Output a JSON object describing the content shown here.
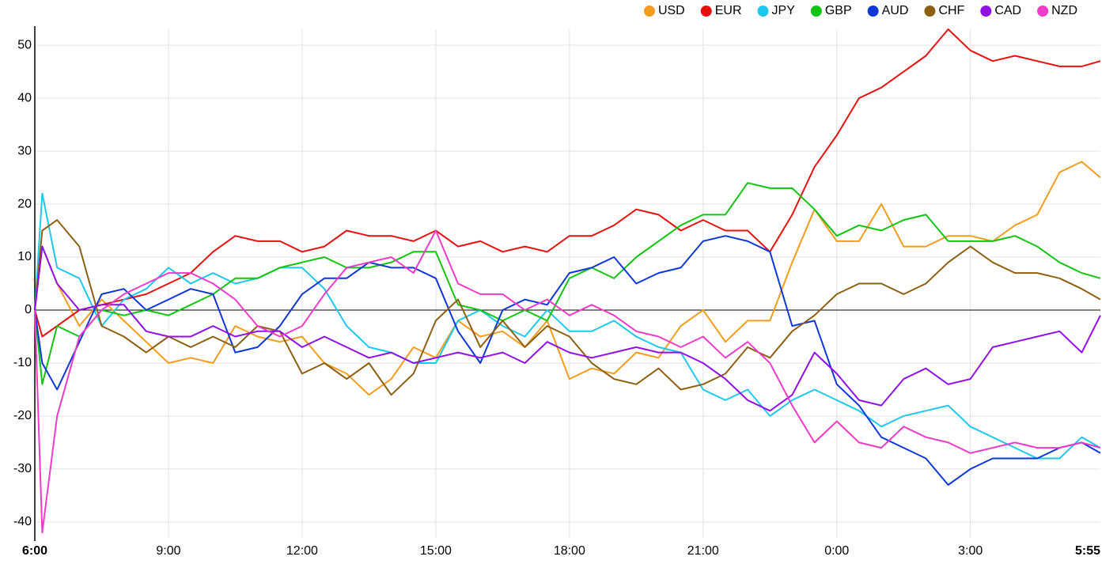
{
  "chart_data": {
    "type": "line",
    "x": [
      0,
      10,
      30,
      60,
      90,
      120,
      150,
      180,
      210,
      240,
      270,
      300,
      330,
      360,
      390,
      420,
      450,
      480,
      510,
      540,
      570,
      600,
      630,
      660,
      690,
      720,
      750,
      780,
      810,
      840,
      870,
      900,
      930,
      960,
      990,
      1020,
      1050,
      1080,
      1110,
      1140,
      1170,
      1200,
      1230,
      1260,
      1290,
      1320,
      1350,
      1380,
      1410,
      1435
    ],
    "xlim": [
      0,
      1435
    ],
    "xticks": [
      {
        "value": 0,
        "label": "6:00"
      },
      {
        "value": 180,
        "label": "9:00"
      },
      {
        "value": 360,
        "label": "12:00"
      },
      {
        "value": 540,
        "label": "15:00"
      },
      {
        "value": 720,
        "label": "18:00"
      },
      {
        "value": 900,
        "label": "21:00"
      },
      {
        "value": 1080,
        "label": "0:00"
      },
      {
        "value": 1260,
        "label": "3:00"
      },
      {
        "value": 1435,
        "label": "5:55"
      }
    ],
    "ylim": [
      -43,
      53
    ],
    "yticks": [
      -40,
      -30,
      -20,
      -10,
      0,
      10,
      20,
      30,
      40,
      50
    ],
    "grid": true,
    "legend": "top-right",
    "series": [
      {
        "name": "USD",
        "color": "#f39c1e",
        "values": [
          0,
          12,
          5,
          -3,
          2,
          -2,
          -6,
          -10,
          -9,
          -10,
          -3,
          -5,
          -6,
          -5,
          -10,
          -12,
          -16,
          -13,
          -7,
          -9,
          -2,
          -5,
          -4,
          -7,
          -2,
          -13,
          -11,
          -12,
          -8,
          -9,
          -3,
          0,
          -6,
          -2,
          -2,
          9,
          19,
          13,
          13,
          20,
          12,
          12,
          14,
          14,
          13,
          16,
          18,
          26,
          28,
          25
        ]
      },
      {
        "name": "EUR",
        "color": "#e8100f",
        "values": [
          0,
          -5,
          -3,
          0,
          1,
          2,
          3,
          5,
          7,
          11,
          14,
          13,
          13,
          11,
          12,
          15,
          14,
          14,
          13,
          15,
          12,
          13,
          11,
          12,
          11,
          14,
          14,
          16,
          19,
          18,
          15,
          17,
          15,
          15,
          11,
          18,
          27,
          33,
          40,
          42,
          45,
          48,
          53,
          49,
          47,
          48,
          47,
          46,
          46,
          47
        ]
      },
      {
        "name": "JPY",
        "color": "#1ec8ec",
        "values": [
          0,
          22,
          8,
          6,
          -3,
          2,
          4,
          8,
          5,
          7,
          5,
          6,
          8,
          8,
          4,
          -3,
          -7,
          -8,
          -10,
          -10,
          -2,
          0,
          -3,
          -5,
          0,
          -4,
          -4,
          -2,
          -5,
          -7,
          -8,
          -15,
          -17,
          -15,
          -20,
          -17,
          -15,
          -17,
          -19,
          -22,
          -20,
          -19,
          -18,
          -22,
          -24,
          -26,
          -28,
          -28,
          -24,
          -26
        ]
      },
      {
        "name": "GBP",
        "color": "#12c412",
        "values": [
          0,
          -14,
          -3,
          -5,
          0,
          -1,
          0,
          -1,
          1,
          3,
          6,
          6,
          8,
          9,
          10,
          8,
          8,
          9,
          11,
          11,
          1,
          0,
          -2,
          0,
          -2,
          6,
          8,
          6,
          10,
          13,
          16,
          18,
          18,
          24,
          23,
          23,
          19,
          14,
          16,
          15,
          17,
          18,
          13,
          13,
          13,
          14,
          12,
          9,
          7,
          6
        ]
      },
      {
        "name": "AUD",
        "color": "#0f37d8",
        "values": [
          0,
          -10,
          -15,
          -6,
          3,
          4,
          0,
          2,
          4,
          3,
          -8,
          -7,
          -3,
          3,
          6,
          6,
          9,
          8,
          8,
          6,
          -4,
          -10,
          0,
          2,
          1,
          7,
          8,
          10,
          5,
          7,
          8,
          13,
          14,
          13,
          11,
          -3,
          -2,
          -14,
          -18,
          -24,
          -26,
          -28,
          -33,
          -30,
          -28,
          -28,
          -28,
          -26,
          -25,
          -27
        ]
      },
      {
        "name": "CHF",
        "color": "#8c6010",
        "values": [
          0,
          15,
          17,
          12,
          -3,
          -5,
          -8,
          -5,
          -7,
          -5,
          -7,
          -3,
          -4,
          -12,
          -10,
          -13,
          -10,
          -16,
          -12,
          -2,
          2,
          -7,
          -2,
          -7,
          -3,
          -5,
          -10,
          -13,
          -14,
          -11,
          -15,
          -14,
          -12,
          -7,
          -9,
          -4,
          -1,
          3,
          5,
          5,
          3,
          5,
          9,
          12,
          9,
          7,
          7,
          6,
          4,
          2
        ]
      },
      {
        "name": "CAD",
        "color": "#9010e8",
        "values": [
          0,
          12,
          5,
          0,
          1,
          1,
          -4,
          -5,
          -5,
          -3,
          -5,
          -4,
          -4,
          -7,
          -5,
          -7,
          -9,
          -8,
          -10,
          -9,
          -8,
          -9,
          -8,
          -10,
          -6,
          -8,
          -9,
          -8,
          -7,
          -8,
          -8,
          -10,
          -13,
          -17,
          -19,
          -16,
          -8,
          -12,
          -17,
          -18,
          -13,
          -11,
          -14,
          -13,
          -7,
          -6,
          -5,
          -4,
          -8,
          -1
        ]
      },
      {
        "name": "NZD",
        "color": "#ee3cc8",
        "values": [
          0,
          -42,
          -20,
          -5,
          0,
          3,
          5,
          7,
          7,
          5,
          2,
          -3,
          -5,
          -3,
          3,
          8,
          9,
          10,
          7,
          15,
          5,
          3,
          3,
          0,
          2,
          -1,
          1,
          -1,
          -4,
          -5,
          -7,
          -5,
          -9,
          -6,
          -10,
          -18,
          -25,
          -21,
          -25,
          -26,
          -22,
          -24,
          -25,
          -27,
          -26,
          -25,
          -26,
          -26,
          -25,
          -26
        ]
      }
    ]
  }
}
